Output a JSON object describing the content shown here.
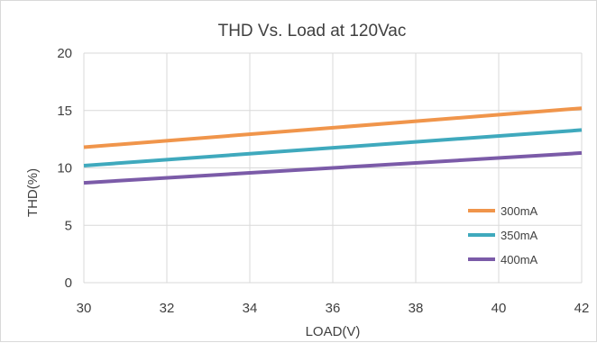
{
  "chart_data": {
    "type": "line",
    "title": "THD Vs. Load at 120Vac",
    "xlabel": "LOAD(V)",
    "ylabel": "THD(%)",
    "xlim": [
      30,
      42
    ],
    "ylim": [
      0,
      20
    ],
    "x_ticks": [
      30,
      32,
      34,
      36,
      38,
      40,
      42
    ],
    "y_ticks": [
      0,
      5,
      10,
      15,
      20
    ],
    "grid": true,
    "legend_position": "bottom-right",
    "series": [
      {
        "name": "300mA",
        "color": "#f0954b",
        "x": [
          30,
          42
        ],
        "y": [
          11.8,
          15.2
        ]
      },
      {
        "name": "350mA",
        "color": "#3fa9bd",
        "x": [
          30,
          42
        ],
        "y": [
          10.2,
          13.3
        ]
      },
      {
        "name": "400mA",
        "color": "#7b5ba8",
        "x": [
          30,
          42
        ],
        "y": [
          8.7,
          11.3
        ]
      }
    ]
  }
}
